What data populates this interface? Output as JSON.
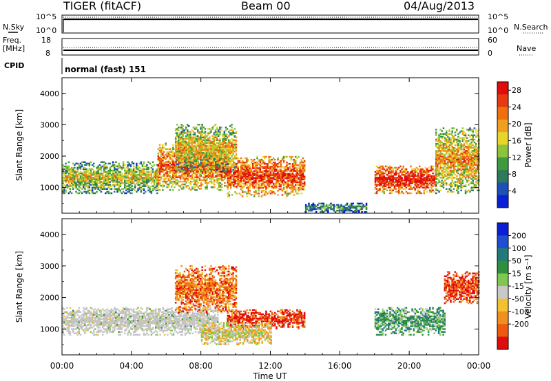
{
  "header": {
    "station": "TIGER (fitACF)",
    "beam": "Beam 00",
    "date": "04/Aug/2013"
  },
  "top_panels": {
    "nsky_label": "N.Sky",
    "nsky_ticks": [
      "10^5",
      "10^0"
    ],
    "nsearch_label": "N.Search",
    "nsearch_ticks": [
      "10^5",
      "10^0"
    ],
    "freq_label_1": "Freq.",
    "freq_label_2": "[MHz]",
    "freq_ticks": [
      "18",
      "8"
    ],
    "nave_label": "Nave",
    "nave_ticks": [
      "60",
      "0"
    ],
    "cpid_label": "CPID",
    "cpid_text": "normal (fast) 151"
  },
  "colors": {
    "power_scale": [
      "#0a1fd6",
      "#1f50b8",
      "#2d7a5a",
      "#3f9a3f",
      "#8cc43a",
      "#e8d52a",
      "#f0a020",
      "#f07010",
      "#e83a10",
      "#e00d0d"
    ],
    "velocity_scale": [
      "#0a1fd6",
      "#1f4fd0",
      "#1f7a7a",
      "#2f8f3f",
      "#7fc850",
      "#c8c8c8",
      "#f3c030",
      "#f09020",
      "#ee5a10",
      "#e00d0d"
    ],
    "ground_scatter": "#c4c4c4"
  },
  "chart_data": [
    {
      "type": "heatmap",
      "title": "Power",
      "xlabel": "Time UT",
      "ylabel": "Slant Range [km]",
      "x_ticks": [
        "00:00",
        "04:00",
        "08:00",
        "12:00",
        "16:00",
        "20:00",
        "00:00"
      ],
      "xlim_hours": [
        0,
        24
      ],
      "y_ticks": [
        1000,
        2000,
        3000,
        4000
      ],
      "ylim": [
        180,
        4500
      ],
      "colorbar": {
        "label": "Power [dB]",
        "ticks": [
          4,
          8,
          12,
          16,
          20,
          24,
          28
        ],
        "range": [
          0,
          30
        ]
      },
      "regions": [
        {
          "t0": 0.0,
          "t1": 5.5,
          "r0": 800,
          "r1": 1800,
          "value": 12
        },
        {
          "t0": 5.5,
          "t1": 9.5,
          "r0": 900,
          "r1": 2400,
          "value": 20
        },
        {
          "t0": 6.5,
          "t1": 10.0,
          "r0": 1500,
          "r1": 3000,
          "value": 14
        },
        {
          "t0": 9.5,
          "t1": 14.0,
          "r0": 700,
          "r1": 2000,
          "value": 22
        },
        {
          "t0": 14.0,
          "t1": 17.5,
          "r0": 200,
          "r1": 500,
          "value": 6
        },
        {
          "t0": 18.0,
          "t1": 21.5,
          "r0": 800,
          "r1": 1700,
          "value": 24
        },
        {
          "t0": 21.5,
          "t1": 24.0,
          "r0": 800,
          "r1": 2900,
          "value": 16
        }
      ]
    },
    {
      "type": "heatmap",
      "title": "Velocity",
      "xlabel": "Time UT",
      "ylabel": "Slant Range [km]",
      "x_ticks": [
        "00:00",
        "04:00",
        "08:00",
        "12:00",
        "16:00",
        "20:00",
        "00:00"
      ],
      "xlim_hours": [
        0,
        24
      ],
      "y_ticks": [
        1000,
        2000,
        3000,
        4000
      ],
      "ylim": [
        180,
        4500
      ],
      "colorbar": {
        "label": "Velocity [m s⁻¹]",
        "ticks": [
          200,
          100,
          50,
          15,
          -15,
          -50,
          -100,
          -200
        ],
        "range": [
          -250,
          250
        ]
      },
      "regions": [
        {
          "t0": 0.0,
          "t1": 9.0,
          "r0": 800,
          "r1": 1700,
          "value": 0
        },
        {
          "t0": 6.5,
          "t1": 10.0,
          "r0": 1500,
          "r1": 3000,
          "value": -150
        },
        {
          "t0": 9.5,
          "t1": 14.0,
          "r0": 1000,
          "r1": 1600,
          "value": -200
        },
        {
          "t0": 8.0,
          "t1": 12.0,
          "r0": 500,
          "r1": 1200,
          "value": -50
        },
        {
          "t0": 18.0,
          "t1": 22.0,
          "r0": 800,
          "r1": 1700,
          "value": 60
        },
        {
          "t0": 22.0,
          "t1": 24.0,
          "r0": 1800,
          "r1": 2800,
          "value": -200
        }
      ]
    }
  ]
}
